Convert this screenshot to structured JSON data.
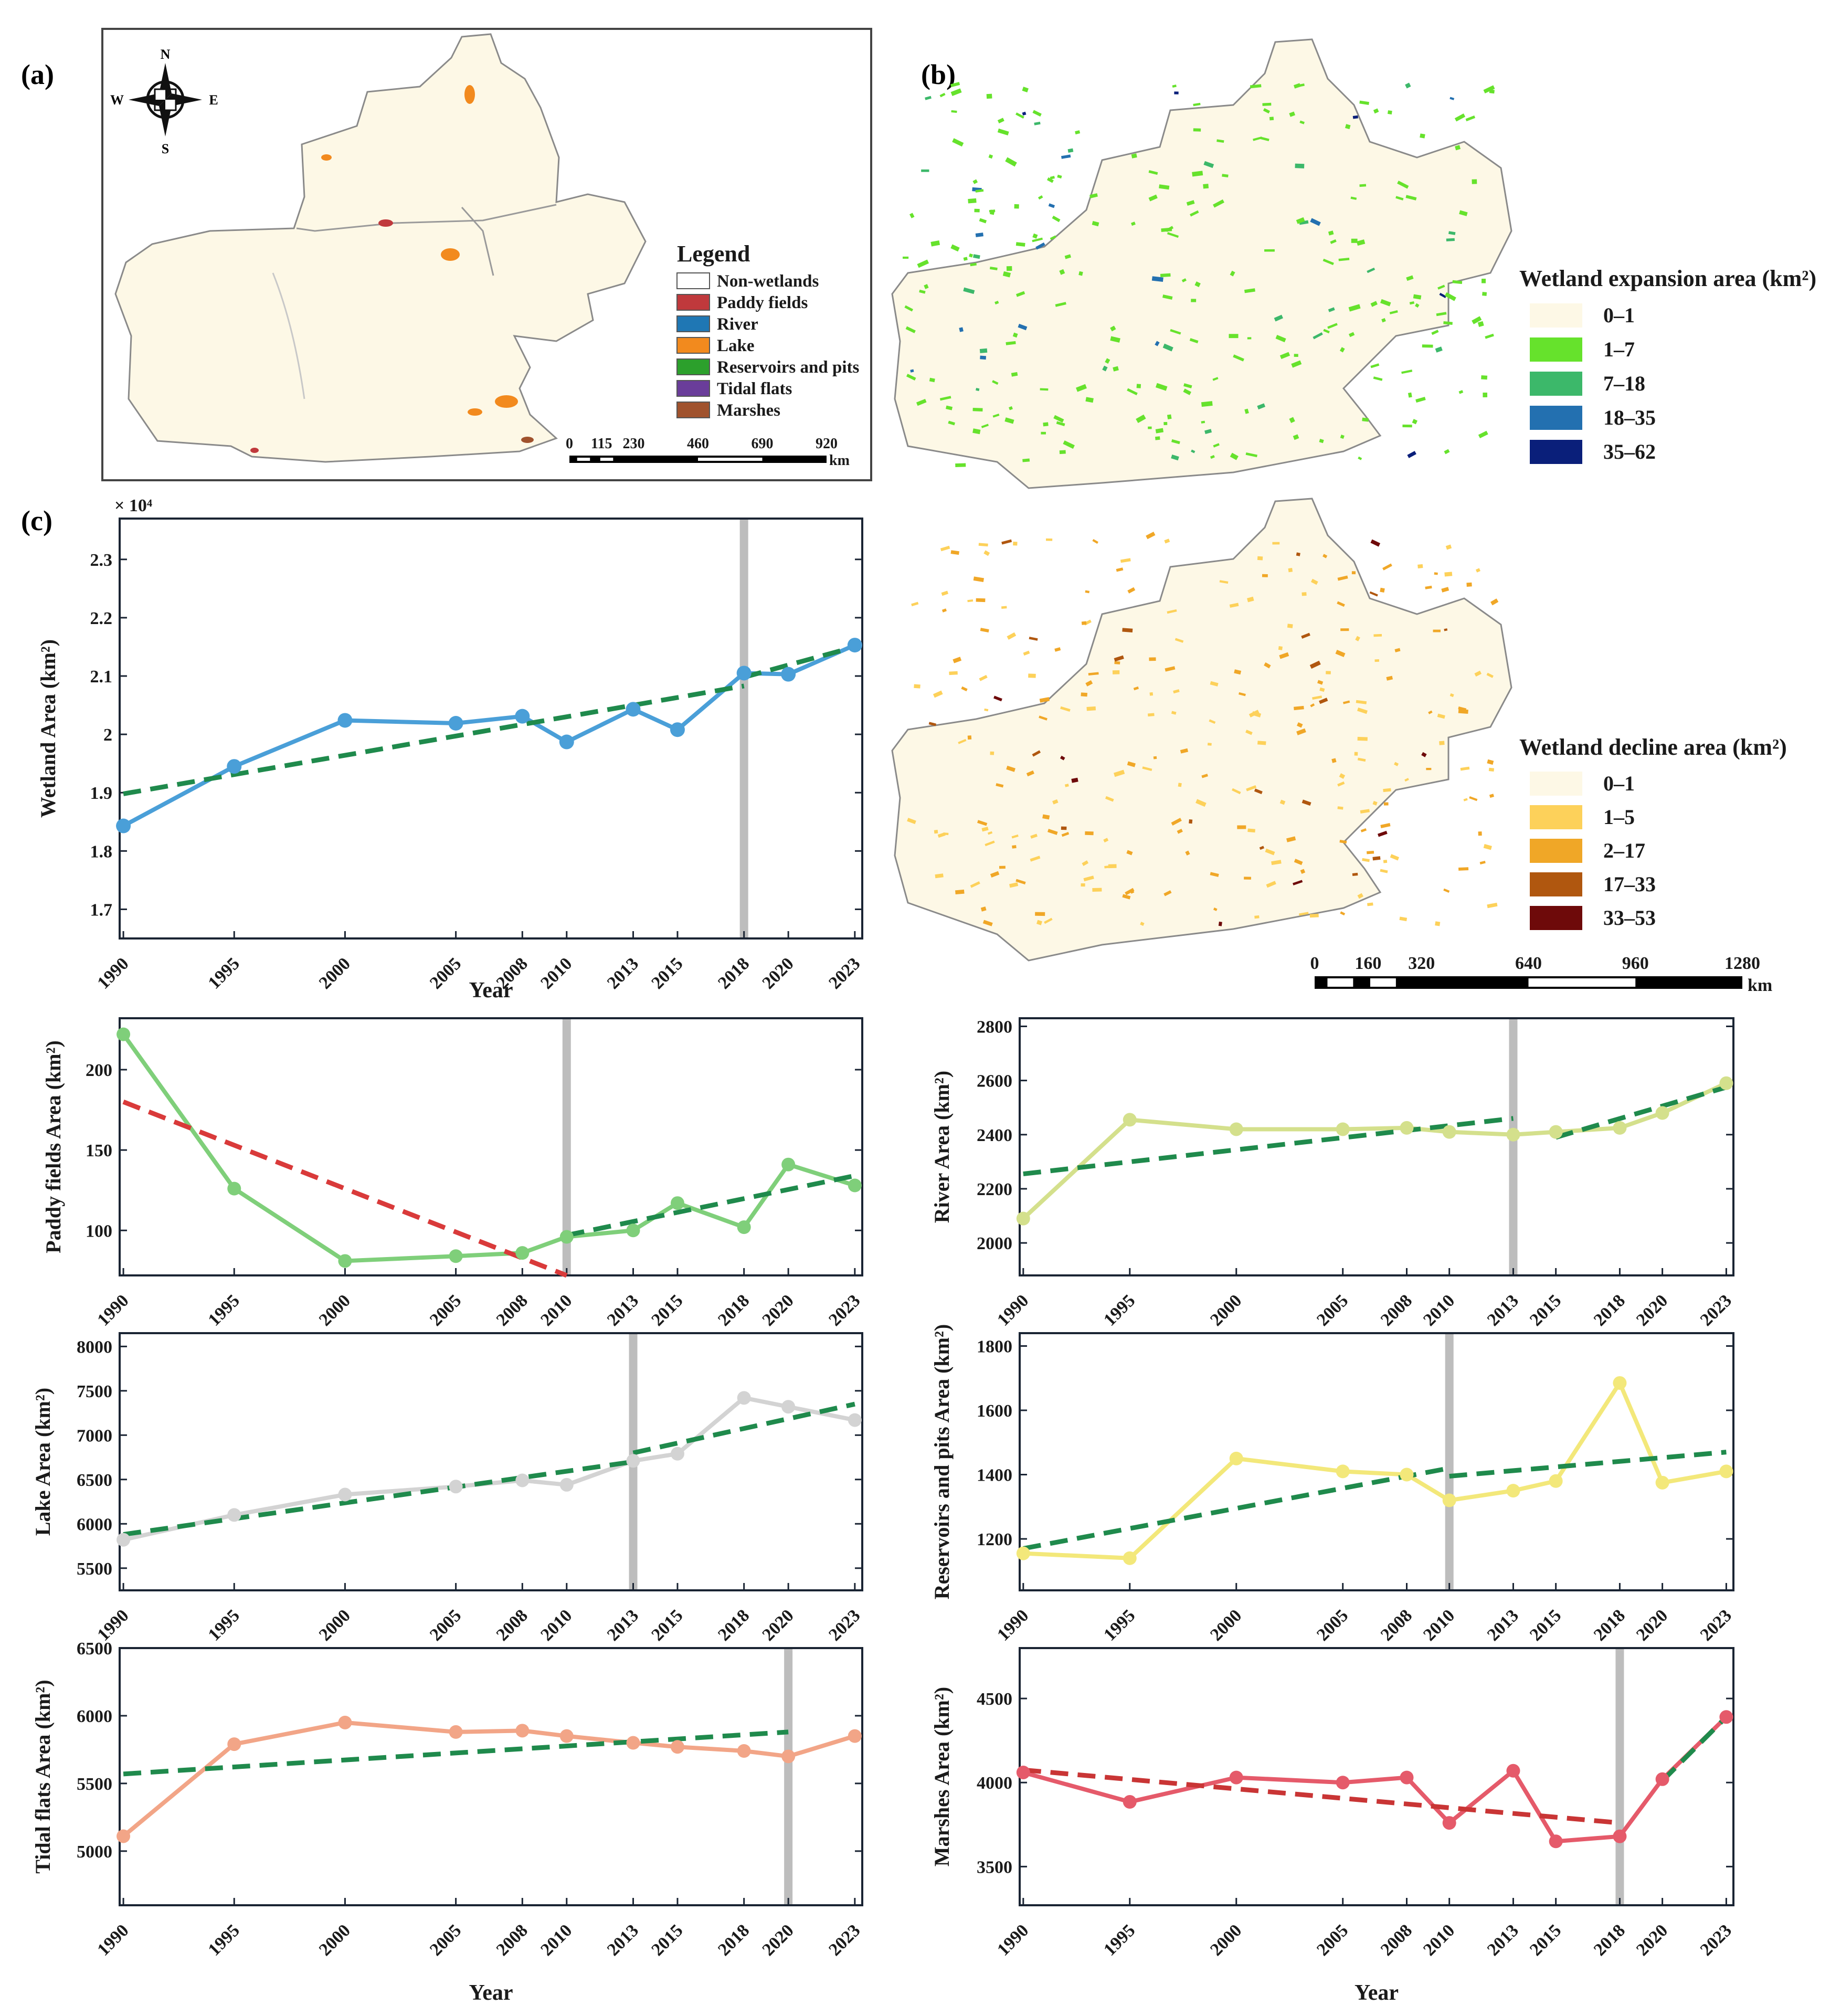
{
  "panel_labels": {
    "a": "(a)",
    "b": "(b)",
    "c": "(c)"
  },
  "map_a": {
    "compass": {
      "n": "N",
      "s": "S",
      "e": "E",
      "w": "W"
    },
    "legend_title": "Legend",
    "legend_items": [
      {
        "label": "Non-wetlands",
        "color": "#ffffff"
      },
      {
        "label": "Paddy fields",
        "color": "#c0393c"
      },
      {
        "label": "River",
        "color": "#1f77b4"
      },
      {
        "label": "Lake",
        "color": "#f28a1e"
      },
      {
        "label": "Reservoirs and pits",
        "color": "#2ca02c"
      },
      {
        "label": "Tidal flats",
        "color": "#6a3d9a"
      },
      {
        "label": "Marshes",
        "color": "#a0522d"
      }
    ],
    "scale_ticks": [
      "0",
      "115",
      "230",
      "460",
      "690",
      "920"
    ],
    "scale_unit": "km"
  },
  "map_b": {
    "expansion_title": "Wetland expansion area (km²)",
    "expansion_classes": [
      {
        "label": "0–1",
        "color": "#fdf8e6"
      },
      {
        "label": "1–7",
        "color": "#66e22c"
      },
      {
        "label": "7–18",
        "color": "#3cb86a"
      },
      {
        "label": "18–35",
        "color": "#2370b0"
      },
      {
        "label": "35–62",
        "color": "#0a1f7a"
      }
    ],
    "decline_title": "Wetland decline area (km²)",
    "decline_classes": [
      {
        "label": "0–1",
        "color": "#fdf8e6"
      },
      {
        "label": "1–5",
        "color": "#fdd15a"
      },
      {
        "label": "2–17",
        "color": "#f0a727"
      },
      {
        "label": "17–33",
        "color": "#b0570f"
      },
      {
        "label": "33–53",
        "color": "#6e0a0a"
      }
    ],
    "scale_ticks": [
      "0",
      "160",
      "320",
      "640",
      "960",
      "1280"
    ],
    "scale_unit": "km"
  },
  "chart_data": [
    {
      "id": "wetland",
      "type": "line",
      "title": "",
      "xlabel": "Year",
      "ylabel": "Wetland Area (km²)",
      "multiplier": "× 10⁴",
      "x": [
        1990,
        1995,
        2000,
        2005,
        2008,
        2010,
        2013,
        2015,
        2018,
        2020,
        2023
      ],
      "values": [
        1.843,
        1.945,
        2.024,
        2.019,
        2.031,
        1.987,
        2.043,
        2.008,
        2.105,
        2.103,
        2.153
      ],
      "ylim": [
        1.65,
        2.37
      ],
      "yticks": [
        1.7,
        1.8,
        1.9,
        2.0,
        2.1,
        2.2,
        2.3
      ],
      "ytick_labels": [
        "1.7",
        "1.8",
        "1.9",
        "2",
        "2.1",
        "2.2",
        "2.3"
      ],
      "breakpoint": 2018,
      "line_color": "#4a9fd8",
      "trends": [
        {
          "x": [
            1990,
            2018
          ],
          "y": [
            1.898,
            2.083
          ],
          "color": "#1f8a4c"
        },
        {
          "x": [
            2018,
            2023
          ],
          "y": [
            2.098,
            2.15
          ],
          "color": "#1f8a4c"
        }
      ]
    },
    {
      "id": "paddy",
      "type": "line",
      "xlabel": "",
      "ylabel": "Paddy fields Area (km²)",
      "x": [
        1990,
        1995,
        2000,
        2005,
        2008,
        2010,
        2013,
        2015,
        2018,
        2020,
        2023
      ],
      "values": [
        222,
        126,
        81,
        84,
        86,
        96,
        100,
        117,
        102,
        141,
        128
      ],
      "ylim": [
        72,
        232
      ],
      "yticks": [
        100,
        150,
        200
      ],
      "ytick_labels": [
        "100",
        "150",
        "200"
      ],
      "breakpoint": 2010,
      "line_color": "#7fcf7a",
      "trends": [
        {
          "x": [
            1990,
            2010
          ],
          "y": [
            180,
            72
          ],
          "color": "#d93a3a"
        },
        {
          "x": [
            2010,
            2023
          ],
          "y": [
            97,
            134
          ],
          "color": "#1f8a4c"
        }
      ]
    },
    {
      "id": "river",
      "type": "line",
      "xlabel": "",
      "ylabel": "River Area (km²)",
      "x": [
        1990,
        1995,
        2000,
        2005,
        2008,
        2010,
        2013,
        2015,
        2018,
        2020,
        2023
      ],
      "values": [
        2090,
        2455,
        2420,
        2420,
        2425,
        2410,
        2400,
        2410,
        2425,
        2480,
        2590
      ],
      "ylim": [
        1880,
        2830
      ],
      "yticks": [
        2000,
        2200,
        2400,
        2600,
        2800
      ],
      "ytick_labels": [
        "2000",
        "2200",
        "2400",
        "2600",
        "2800"
      ],
      "breakpoint": 2013,
      "line_color": "#d4e08c",
      "trends": [
        {
          "x": [
            1990,
            2013
          ],
          "y": [
            2255,
            2460
          ],
          "color": "#1f8a4c"
        },
        {
          "x": [
            2015,
            2023
          ],
          "y": [
            2390,
            2575
          ],
          "color": "#1f8a4c"
        }
      ]
    },
    {
      "id": "lake",
      "type": "line",
      "xlabel": "",
      "ylabel": "Lake Area (km²)",
      "x": [
        1990,
        1995,
        2000,
        2005,
        2008,
        2010,
        2013,
        2015,
        2018,
        2020,
        2023
      ],
      "values": [
        5820,
        6100,
        6330,
        6420,
        6490,
        6440,
        6710,
        6790,
        7420,
        7320,
        7170
      ],
      "ylim": [
        5250,
        8150
      ],
      "yticks": [
        5500,
        6000,
        6500,
        7000,
        7500,
        8000
      ],
      "ytick_labels": [
        "5500",
        "6000",
        "6500",
        "7000",
        "7500",
        "8000"
      ],
      "breakpoint": 2013,
      "line_color": "#d3d3d3",
      "trends": [
        {
          "x": [
            1990,
            2013
          ],
          "y": [
            5880,
            6700
          ],
          "color": "#1f8a4c"
        },
        {
          "x": [
            2013,
            2023
          ],
          "y": [
            6800,
            7350
          ],
          "color": "#1f8a4c"
        }
      ]
    },
    {
      "id": "reservoirs",
      "type": "line",
      "xlabel": "",
      "ylabel": "Reservoirs and pits Area (km²)",
      "x": [
        1990,
        1995,
        2000,
        2005,
        2008,
        2010,
        2013,
        2015,
        2018,
        2020,
        2023
      ],
      "values": [
        1155,
        1140,
        1450,
        1410,
        1400,
        1320,
        1350,
        1380,
        1685,
        1375,
        1410
      ],
      "ylim": [
        1040,
        1840
      ],
      "yticks": [
        1200,
        1400,
        1600,
        1800
      ],
      "ytick_labels": [
        "1200",
        "1400",
        "1600",
        "1800"
      ],
      "breakpoint": 2010,
      "line_color": "#f3e87a",
      "trends": [
        {
          "x": [
            1990,
            2010
          ],
          "y": [
            1170,
            1420
          ],
          "color": "#1f8a4c"
        },
        {
          "x": [
            2010,
            2023
          ],
          "y": [
            1395,
            1470
          ],
          "color": "#1f8a4c"
        }
      ]
    },
    {
      "id": "tidal",
      "type": "line",
      "xlabel": "Year",
      "ylabel": "Tidal flats Area (km²)",
      "x": [
        1990,
        1995,
        2000,
        2005,
        2008,
        2010,
        2013,
        2015,
        2018,
        2020,
        2023
      ],
      "values": [
        5110,
        5790,
        5950,
        5880,
        5890,
        5850,
        5800,
        5770,
        5740,
        5700,
        5850
      ],
      "ylim": [
        4600,
        6500
      ],
      "yticks": [
        5000,
        5500,
        6000,
        6500
      ],
      "ytick_labels": [
        "5000",
        "5500",
        "6000",
        "6500"
      ],
      "breakpoint": 2020,
      "line_color": "#f2a587",
      "trends": [
        {
          "x": [
            1990,
            2020
          ],
          "y": [
            5570,
            5880
          ],
          "color": "#1f8a4c"
        }
      ]
    },
    {
      "id": "marshes",
      "type": "line",
      "xlabel": "Year",
      "ylabel": "Marshes Area (km²)",
      "x": [
        1990,
        1995,
        2000,
        2005,
        2008,
        2010,
        2013,
        2015,
        2018,
        2020,
        2023
      ],
      "values": [
        4060,
        3885,
        4030,
        4000,
        4030,
        3760,
        4070,
        3650,
        3680,
        4020,
        4390
      ],
      "ylim": [
        3270,
        4800
      ],
      "yticks": [
        3500,
        4000,
        4500
      ],
      "ytick_labels": [
        "3500",
        "4000",
        "4500"
      ],
      "breakpoint": 2018,
      "line_color": "#e55a6a",
      "trends": [
        {
          "x": [
            1990,
            2018
          ],
          "y": [
            4075,
            3760
          ],
          "color": "#c93535"
        },
        {
          "x": [
            2020,
            2023
          ],
          "y": [
            4010,
            4390
          ],
          "color": "#1f8a4c"
        }
      ]
    }
  ]
}
